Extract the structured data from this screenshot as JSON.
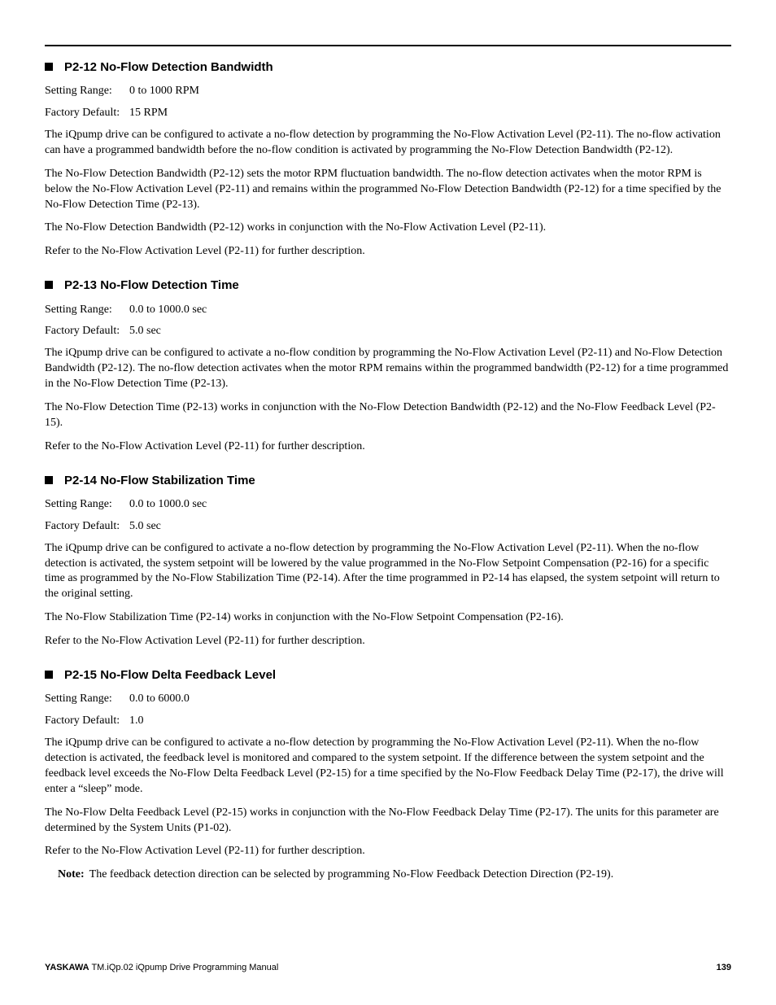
{
  "sections": [
    {
      "title": "P2-12 No-Flow Detection Bandwidth",
      "setting_range_label": "Setting Range:",
      "setting_range_value": "0 to 1000 RPM",
      "factory_default_label": "Factory Default:",
      "factory_default_value": "15 RPM",
      "paragraphs": [
        "The iQpump drive can be configured to activate a no-flow detection by programming the No-Flow Activation Level (P2-11). The no-flow activation can have a programmed bandwidth before the no-flow condition is activated by programming the No-Flow Detection Bandwidth (P2-12).",
        "The No-Flow Detection Bandwidth (P2-12) sets the motor RPM fluctuation bandwidth. The no-flow detection activates when the motor RPM is below the No-Flow Activation Level (P2-11) and remains within the programmed No-Flow Detection Bandwidth (P2-12) for a time specified by the No-Flow Detection Time (P2-13).",
        "The No-Flow Detection Bandwidth (P2-12) works in conjunction with the No-Flow Activation Level (P2-11).",
        "Refer to the No-Flow Activation Level (P2-11) for further description."
      ]
    },
    {
      "title": "P2-13 No-Flow Detection Time",
      "setting_range_label": "Setting Range:",
      "setting_range_value": "0.0 to 1000.0 sec",
      "factory_default_label": "Factory Default:",
      "factory_default_value": "5.0 sec",
      "paragraphs": [
        "The iQpump drive can be configured to activate a no-flow condition by programming the No-Flow Activation Level (P2-11) and No-Flow Detection Bandwidth (P2-12). The no-flow detection activates when the motor RPM remains within the programmed bandwidth (P2-12) for a time programmed in the No-Flow Detection Time (P2-13).",
        "The No-Flow Detection Time (P2-13) works in conjunction with the No-Flow Detection Bandwidth (P2-12) and the No-Flow Feedback Level (P2-15).",
        "Refer to the No-Flow Activation Level (P2-11) for further description."
      ]
    },
    {
      "title": "P2-14 No-Flow Stabilization Time",
      "setting_range_label": "Setting Range:",
      "setting_range_value": "0.0 to 1000.0 sec",
      "factory_default_label": "Factory Default:",
      "factory_default_value": "5.0 sec",
      "paragraphs": [
        "The iQpump drive can be configured to activate a no-flow detection by programming the No-Flow Activation Level (P2-11). When the no-flow detection is activated, the system setpoint will be lowered by the value programmed in the No-Flow Setpoint Compensation (P2-16) for a specific time as programmed by the No-Flow Stabilization Time (P2-14). After the time programmed in P2-14 has elapsed, the system setpoint will return to the original setting.",
        "The No-Flow Stabilization Time (P2-14) works in conjunction with the No-Flow Setpoint Compensation (P2-16).",
        "Refer to the No-Flow Activation Level (P2-11) for further description."
      ]
    },
    {
      "title": "P2-15 No-Flow Delta Feedback Level",
      "setting_range_label": "Setting Range:",
      "setting_range_value": "0.0 to 6000.0",
      "factory_default_label": "Factory Default:",
      "factory_default_value": "1.0",
      "paragraphs": [
        "The iQpump drive can be configured to activate a no-flow detection by programming the No-Flow Activation Level (P2-11). When the no-flow detection is activated, the feedback level is monitored and compared to the system setpoint. If the difference between the system setpoint and the feedback level exceeds the No-Flow Delta Feedback Level (P2-15) for a time specified by the No-Flow Feedback Delay Time (P2-17), the drive will enter a “sleep” mode.",
        "The No-Flow Delta Feedback Level (P2-15) works in conjunction with the No-Flow Feedback Delay Time (P2-17). The units for this parameter are determined by the System Units (P1-02).",
        "Refer to the No-Flow Activation Level (P2-11) for further description."
      ],
      "note_label": "Note:",
      "note_text": "The feedback detection direction can be selected by programming No-Flow Feedback Detection Direction (P2-19)."
    }
  ],
  "footer": {
    "brand": "YASKAWA",
    "doc": " TM.iQp.02 iQpump Drive Programming Manual",
    "page": "139"
  }
}
